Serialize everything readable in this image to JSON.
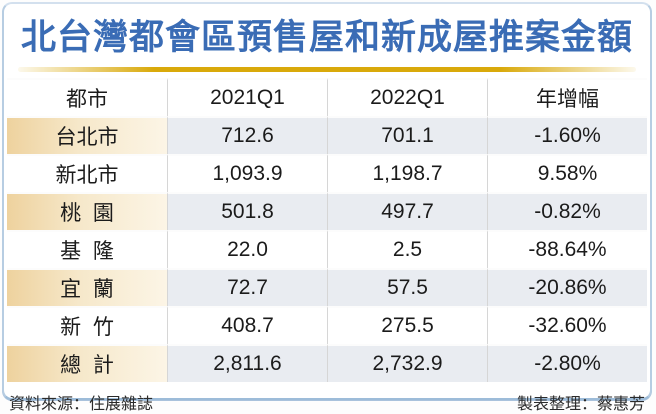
{
  "title": "北台灣都會區預售屋和新成屋推案金額",
  "table": {
    "columns": [
      "都市",
      "2021Q1",
      "2022Q1",
      "年增幅"
    ],
    "rows": [
      {
        "cells": [
          "台北市",
          "712.6",
          "701.1",
          "-1.60%"
        ],
        "highlight": true
      },
      {
        "cells": [
          "新北市",
          "1,093.9",
          "1,198.7",
          "9.58%"
        ],
        "highlight": false
      },
      {
        "cells": [
          "桃 園",
          "501.8",
          "497.7",
          "-0.82%"
        ],
        "highlight": true
      },
      {
        "cells": [
          "基 隆",
          "22.0",
          "2.5",
          "-88.64%"
        ],
        "highlight": false
      },
      {
        "cells": [
          "宜 蘭",
          "72.7",
          "57.5",
          "-20.86%"
        ],
        "highlight": true
      },
      {
        "cells": [
          "新 竹",
          "408.7",
          "275.5",
          "-32.60%"
        ],
        "highlight": false
      },
      {
        "cells": [
          "總 計",
          "2,811.6",
          "2,732.9",
          "-2.80%"
        ],
        "highlight": true
      }
    ]
  },
  "footer": {
    "source": "資料來源：住展雜誌",
    "credit": "製表整理：蔡惠芳"
  },
  "colors": {
    "title_blue": "#3a6cb5",
    "gold_divider": "#d9a90a",
    "highlight_peach": "#eed29e",
    "highlight_gray": "#e9ecf1",
    "card_border": "#b7cde2"
  },
  "chart_data": {
    "type": "table",
    "title": "北台灣都會區預售屋和新成屋推案金額",
    "columns": [
      "都市",
      "2021Q1",
      "2022Q1",
      "年增幅"
    ],
    "rows": [
      [
        "台北市",
        712.6,
        701.1,
        "-1.60%"
      ],
      [
        "新北市",
        1093.9,
        1198.7,
        "9.58%"
      ],
      [
        "桃園",
        501.8,
        497.7,
        "-0.82%"
      ],
      [
        "基隆",
        22.0,
        2.5,
        "-88.64%"
      ],
      [
        "宜蘭",
        72.7,
        57.5,
        "-20.86%"
      ],
      [
        "新竹",
        408.7,
        275.5,
        "-32.60%"
      ],
      [
        "總計",
        2811.6,
        2732.9,
        "-2.80%"
      ]
    ],
    "source_note": "資料來源：住展雜誌",
    "credit_note": "製表整理：蔡惠芳"
  }
}
